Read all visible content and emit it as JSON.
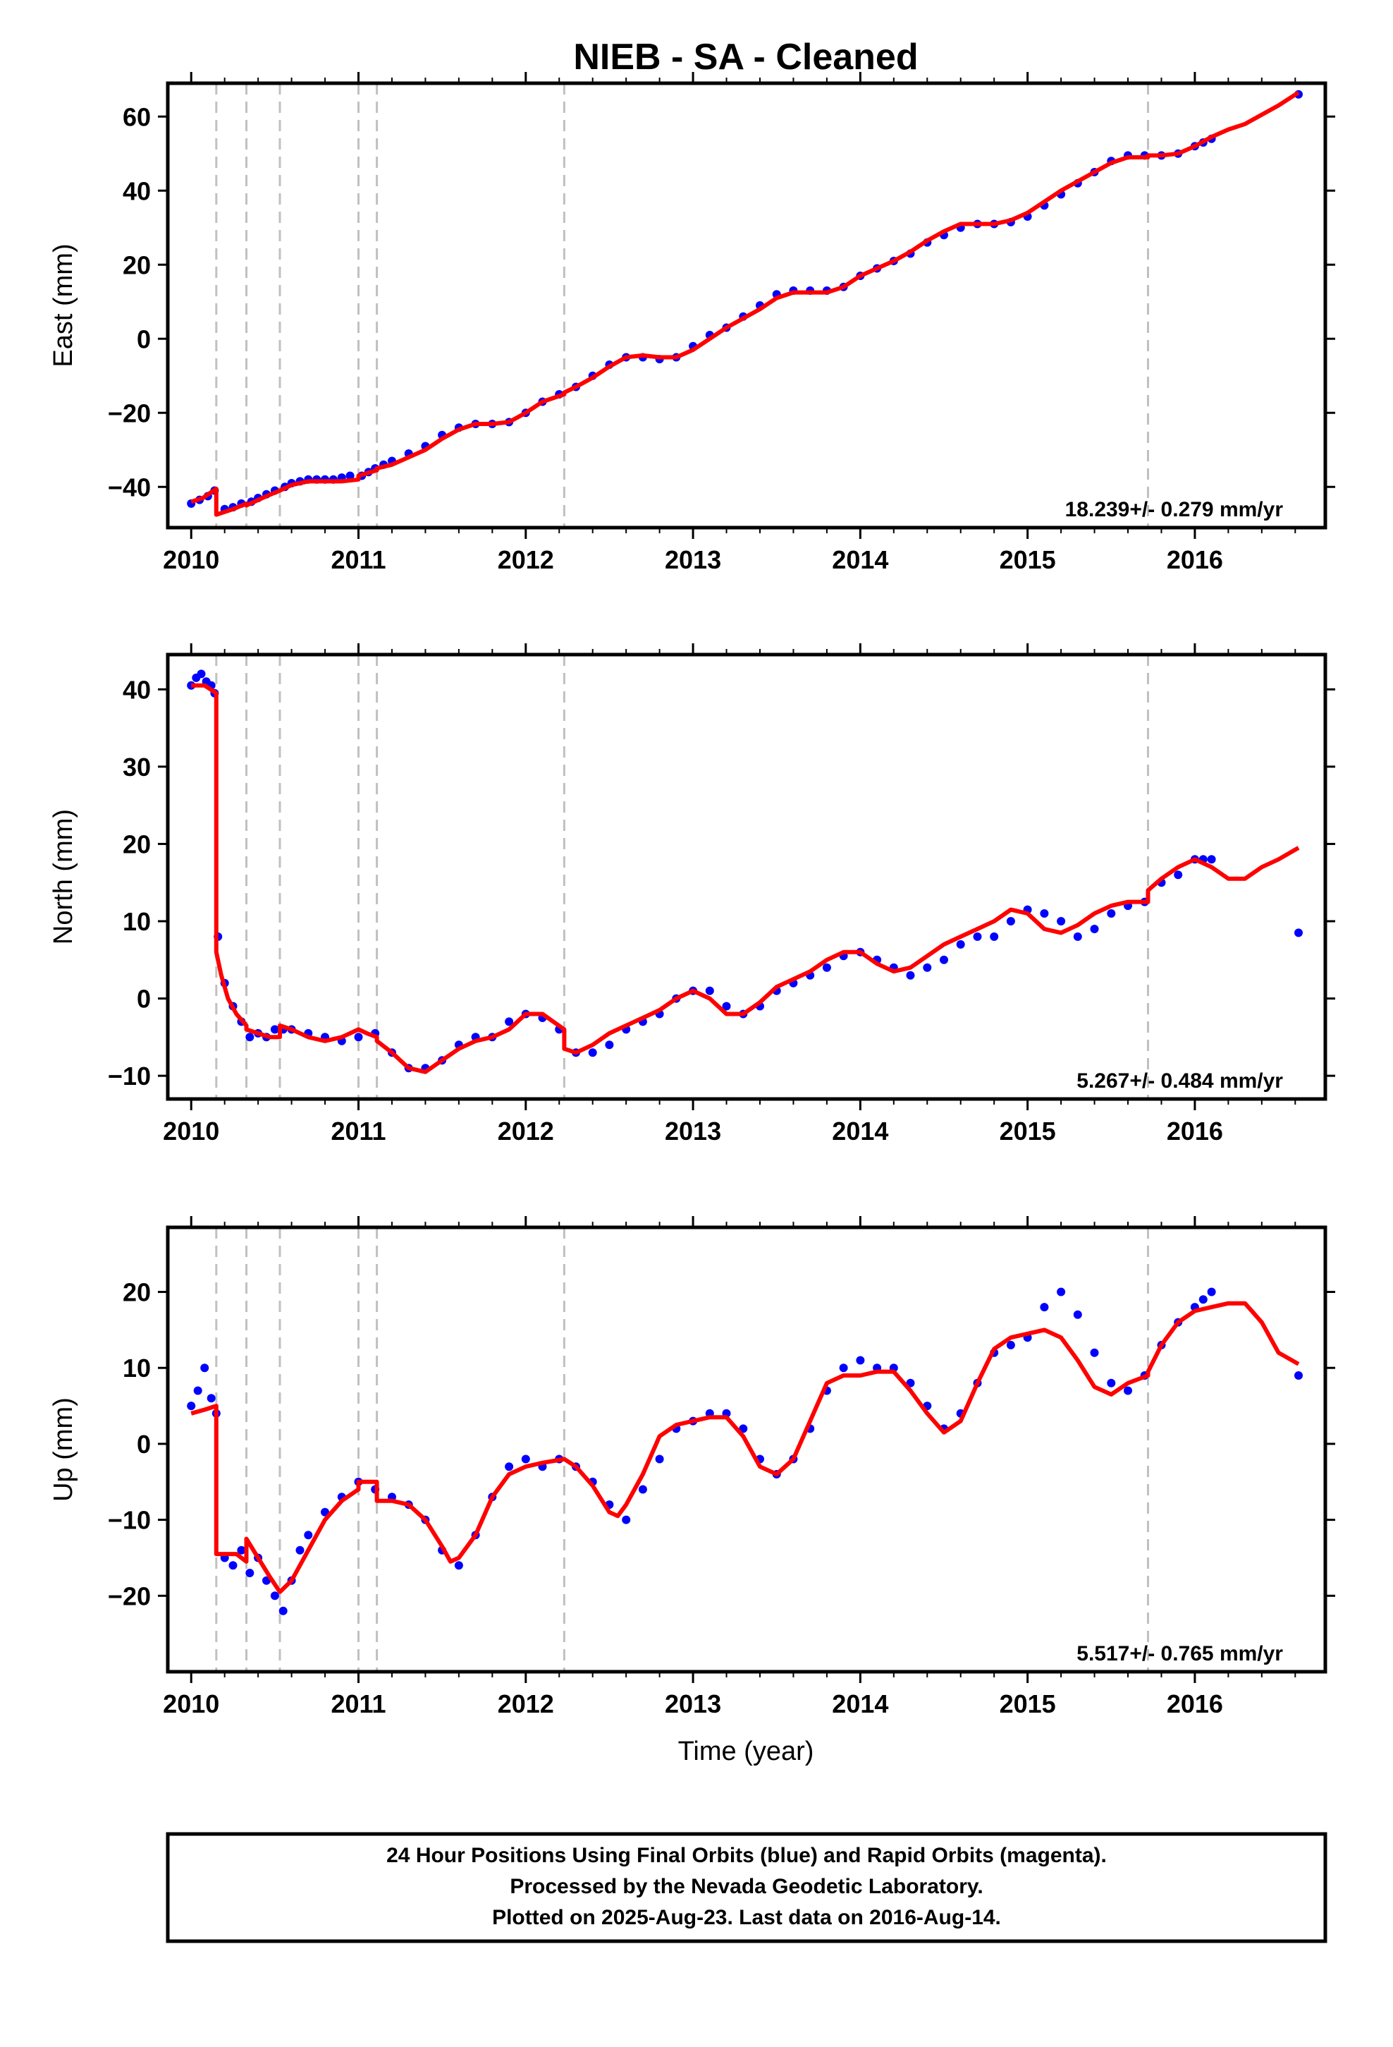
{
  "title": "NIEB  - SA - Cleaned",
  "colors": {
    "final": "#0000ff",
    "model": "#ff0000",
    "break": "#c0c0c0",
    "axis": "#000000"
  },
  "chart_data": [
    {
      "type": "scatter",
      "panel": "east",
      "ylabel": "East (mm)",
      "xlabel": "",
      "xlim": [
        2009.86,
        2016.78
      ],
      "ylim": [
        -51,
        69
      ],
      "yticks": [
        -40,
        -20,
        0,
        20,
        40,
        60
      ],
      "ytick_labels": [
        "−40",
        "−20",
        "0",
        "20",
        "40",
        "60"
      ],
      "xticks": [
        2010,
        2011,
        2012,
        2013,
        2014,
        2015,
        2016
      ],
      "xtick_labels": [
        "2010",
        "2011",
        "2012",
        "2013",
        "2014",
        "2015",
        "2016"
      ],
      "breaks": [
        2010.15,
        2010.33,
        2010.53,
        2011.0,
        2011.11,
        2012.23,
        2015.72
      ],
      "rate_text": "18.239+/- 0.279 mm/yr",
      "series_points": {
        "x": [
          2010.0,
          2010.05,
          2010.1,
          2010.14,
          2010.2,
          2010.25,
          2010.3,
          2010.36,
          2010.4,
          2010.45,
          2010.5,
          2010.56,
          2010.6,
          2010.65,
          2010.7,
          2010.75,
          2010.8,
          2010.85,
          2010.9,
          2010.95,
          2011.02,
          2011.06,
          2011.1,
          2011.15,
          2011.2,
          2011.3,
          2011.4,
          2011.5,
          2011.6,
          2011.7,
          2011.8,
          2011.9,
          2012.0,
          2012.1,
          2012.2,
          2012.3,
          2012.4,
          2012.5,
          2012.6,
          2012.7,
          2012.8,
          2012.9,
          2013.0,
          2013.1,
          2013.2,
          2013.3,
          2013.4,
          2013.5,
          2013.6,
          2013.7,
          2013.8,
          2013.9,
          2014.0,
          2014.1,
          2014.2,
          2014.3,
          2014.4,
          2014.5,
          2014.6,
          2014.7,
          2014.8,
          2014.9,
          2015.0,
          2015.1,
          2015.2,
          2015.3,
          2015.4,
          2015.5,
          2015.6,
          2015.7,
          2015.8,
          2015.9,
          2016.0,
          2016.05,
          2016.1,
          2016.62
        ],
        "y": [
          -44.5,
          -43.5,
          -42.5,
          -41,
          -46,
          -45.5,
          -44.5,
          -44,
          -43,
          -42,
          -41,
          -40,
          -39,
          -38.5,
          -38,
          -38,
          -38,
          -38,
          -37.5,
          -37,
          -37,
          -36,
          -35,
          -34,
          -33,
          -31,
          -29,
          -26,
          -24,
          -23,
          -23,
          -22.5,
          -20,
          -17,
          -15,
          -13,
          -10,
          -7,
          -5,
          -5,
          -5.5,
          -5,
          -2,
          1,
          3,
          6,
          9,
          12,
          13,
          13,
          13,
          14,
          17,
          19,
          21,
          23,
          26,
          28,
          30,
          31,
          31,
          31.5,
          33,
          36,
          39,
          42,
          45,
          48,
          49.5,
          49.5,
          49.5,
          50,
          52,
          53,
          54,
          66
        ]
      },
      "model_line": {
        "x": [
          2010.0,
          2010.07,
          2010.15,
          2010.15,
          2010.25,
          2010.33,
          2010.33,
          2010.45,
          2010.53,
          2010.53,
          2010.6,
          2010.7,
          2010.8,
          2010.9,
          2011.0,
          2011.0,
          2011.11,
          2011.11,
          2011.2,
          2011.3,
          2011.4,
          2011.5,
          2011.6,
          2011.7,
          2011.8,
          2011.9,
          2012.0,
          2012.1,
          2012.23,
          2012.23,
          2012.3,
          2012.4,
          2012.5,
          2012.6,
          2012.7,
          2012.8,
          2012.9,
          2013.0,
          2013.1,
          2013.2,
          2013.3,
          2013.4,
          2013.5,
          2013.6,
          2013.7,
          2013.8,
          2013.9,
          2014.0,
          2014.1,
          2014.2,
          2014.3,
          2014.4,
          2014.5,
          2014.6,
          2014.7,
          2014.8,
          2014.9,
          2015.0,
          2015.1,
          2015.2,
          2015.3,
          2015.4,
          2015.5,
          2015.6,
          2015.72,
          2015.72,
          2015.8,
          2015.9,
          2016.0,
          2016.1,
          2016.2,
          2016.3,
          2016.4,
          2016.5,
          2016.62
        ],
        "y": [
          -44,
          -43,
          -40.5,
          -47.5,
          -46,
          -44.5,
          -45,
          -42.5,
          -41,
          -41,
          -39.5,
          -38.5,
          -38.5,
          -38.5,
          -38,
          -37,
          -35.5,
          -35,
          -34,
          -32,
          -30,
          -27,
          -24.5,
          -23,
          -23,
          -22.5,
          -20,
          -17,
          -15,
          -14.5,
          -13,
          -10.5,
          -7.5,
          -5,
          -4.5,
          -5,
          -5,
          -3,
          0,
          3,
          5.5,
          8,
          11,
          12.5,
          12.5,
          12.5,
          14,
          17,
          19,
          21,
          23.5,
          26.5,
          29,
          31,
          31,
          31,
          32,
          34,
          37,
          40,
          42.5,
          45,
          47.5,
          49,
          49,
          49.5,
          49.5,
          50,
          52,
          54.5,
          56.5,
          58,
          60.5,
          63,
          66.5
        ]
      }
    },
    {
      "type": "scatter",
      "panel": "north",
      "ylabel": "North (mm)",
      "xlabel": "",
      "xlim": [
        2009.86,
        2016.78
      ],
      "ylim": [
        -13,
        44.5
      ],
      "yticks": [
        -10,
        0,
        10,
        20,
        30,
        40
      ],
      "ytick_labels": [
        "−10",
        "0",
        "10",
        "20",
        "30",
        "40"
      ],
      "xticks": [
        2010,
        2011,
        2012,
        2013,
        2014,
        2015,
        2016
      ],
      "xtick_labels": [
        "2010",
        "2011",
        "2012",
        "2013",
        "2014",
        "2015",
        "2016"
      ],
      "breaks": [
        2010.15,
        2010.33,
        2010.53,
        2011.0,
        2011.11,
        2012.23,
        2015.72
      ],
      "rate_text": "5.267+/- 0.484 mm/yr",
      "series_points": {
        "x": [
          2010.0,
          2010.03,
          2010.06,
          2010.09,
          2010.12,
          2010.14,
          2010.16,
          2010.2,
          2010.25,
          2010.3,
          2010.35,
          2010.4,
          2010.45,
          2010.5,
          2010.55,
          2010.6,
          2010.7,
          2010.8,
          2010.9,
          2011.0,
          2011.1,
          2011.2,
          2011.3,
          2011.4,
          2011.5,
          2011.6,
          2011.7,
          2011.8,
          2011.9,
          2012.0,
          2012.1,
          2012.2,
          2012.3,
          2012.4,
          2012.5,
          2012.6,
          2012.7,
          2012.8,
          2012.9,
          2013.0,
          2013.1,
          2013.2,
          2013.3,
          2013.4,
          2013.5,
          2013.6,
          2013.7,
          2013.8,
          2013.9,
          2014.0,
          2014.1,
          2014.2,
          2014.3,
          2014.4,
          2014.5,
          2014.6,
          2014.7,
          2014.8,
          2014.9,
          2015.0,
          2015.1,
          2015.2,
          2015.3,
          2015.4,
          2015.5,
          2015.6,
          2015.7,
          2015.8,
          2015.9,
          2016.0,
          2016.05,
          2016.1,
          2016.62
        ],
        "y": [
          40.5,
          41.5,
          42,
          41,
          40.5,
          39.5,
          8,
          2,
          -1,
          -3,
          -5,
          -4.5,
          -5,
          -4,
          -4,
          -4,
          -4.5,
          -5,
          -5.5,
          -5,
          -4.5,
          -7,
          -9,
          -9,
          -8,
          -6,
          -5,
          -5,
          -3,
          -2,
          -2.5,
          -4,
          -7,
          -7,
          -6,
          -4,
          -3,
          -2,
          0,
          1,
          1,
          -1,
          -2,
          -1,
          1,
          2,
          3,
          4,
          5.5,
          6,
          5,
          4,
          3,
          4,
          5,
          7,
          8,
          8,
          10,
          11.5,
          11,
          10,
          8,
          9,
          11,
          12,
          12.5,
          15,
          16,
          18,
          18,
          18,
          8.5
        ]
      },
      "model_line": {
        "x": [
          2010.0,
          2010.08,
          2010.15,
          2010.15,
          2010.18,
          2010.22,
          2010.27,
          2010.33,
          2010.33,
          2010.4,
          2010.47,
          2010.53,
          2010.53,
          2010.6,
          2010.7,
          2010.8,
          2010.9,
          2011.0,
          2011.0,
          2011.05,
          2011.11,
          2011.11,
          2011.2,
          2011.3,
          2011.4,
          2011.5,
          2011.6,
          2011.7,
          2011.8,
          2011.9,
          2012.0,
          2012.1,
          2012.23,
          2012.23,
          2012.3,
          2012.4,
          2012.5,
          2012.6,
          2012.7,
          2012.8,
          2012.9,
          2013.0,
          2013.1,
          2013.2,
          2013.3,
          2013.4,
          2013.5,
          2013.6,
          2013.7,
          2013.8,
          2013.9,
          2014.0,
          2014.1,
          2014.2,
          2014.3,
          2014.4,
          2014.5,
          2014.6,
          2014.7,
          2014.8,
          2014.9,
          2015.0,
          2015.1,
          2015.2,
          2015.3,
          2015.4,
          2015.5,
          2015.6,
          2015.72,
          2015.72,
          2015.8,
          2015.9,
          2016.0,
          2016.1,
          2016.2,
          2016.3,
          2016.4,
          2016.5,
          2016.62
        ],
        "y": [
          40.5,
          40.5,
          39.5,
          6,
          3,
          0,
          -2,
          -3.5,
          -4,
          -4.5,
          -5,
          -5,
          -3.5,
          -4,
          -5,
          -5.5,
          -5,
          -4,
          -4,
          -4.5,
          -5,
          -5.5,
          -7,
          -9,
          -9.5,
          -8,
          -6.5,
          -5.5,
          -5,
          -4,
          -2,
          -2,
          -4,
          -6.5,
          -7,
          -6,
          -4.5,
          -3.5,
          -2.5,
          -1.5,
          0,
          1,
          0,
          -2,
          -2,
          -0.5,
          1.5,
          2.5,
          3.5,
          5,
          6,
          6,
          4.5,
          3.5,
          4,
          5.5,
          7,
          8,
          9,
          10,
          11.5,
          11,
          9,
          8.5,
          9.5,
          11,
          12,
          12.5,
          12.5,
          14,
          15.5,
          17,
          18,
          17,
          15.5,
          15.5,
          17,
          18,
          19.5
        ]
      }
    },
    {
      "type": "scatter",
      "panel": "up",
      "ylabel": "Up (mm)",
      "xlabel": "Time (year)",
      "xlim": [
        2009.86,
        2016.78
      ],
      "ylim": [
        -30,
        28.5
      ],
      "yticks": [
        -20,
        -10,
        0,
        10,
        20
      ],
      "ytick_labels": [
        "−20",
        "−10",
        "0",
        "10",
        "20"
      ],
      "xticks": [
        2010,
        2011,
        2012,
        2013,
        2014,
        2015,
        2016
      ],
      "xtick_labels": [
        "2010",
        "2011",
        "2012",
        "2013",
        "2014",
        "2015",
        "2016"
      ],
      "breaks": [
        2010.15,
        2010.33,
        2010.53,
        2011.0,
        2011.11,
        2012.23,
        2015.72
      ],
      "rate_text": "5.517+/- 0.765 mm/yr",
      "series_points": {
        "x": [
          2010.0,
          2010.04,
          2010.08,
          2010.12,
          2010.15,
          2010.2,
          2010.25,
          2010.3,
          2010.35,
          2010.4,
          2010.45,
          2010.5,
          2010.55,
          2010.6,
          2010.65,
          2010.7,
          2010.8,
          2010.9,
          2011.0,
          2011.1,
          2011.2,
          2011.3,
          2011.4,
          2011.5,
          2011.6,
          2011.7,
          2011.8,
          2011.9,
          2012.0,
          2012.1,
          2012.2,
          2012.3,
          2012.4,
          2012.5,
          2012.6,
          2012.7,
          2012.8,
          2012.9,
          2013.0,
          2013.1,
          2013.2,
          2013.3,
          2013.4,
          2013.5,
          2013.6,
          2013.7,
          2013.8,
          2013.9,
          2014.0,
          2014.1,
          2014.2,
          2014.3,
          2014.4,
          2014.5,
          2014.6,
          2014.7,
          2014.8,
          2014.9,
          2015.0,
          2015.1,
          2015.2,
          2015.3,
          2015.4,
          2015.5,
          2015.6,
          2015.7,
          2015.8,
          2015.9,
          2016.0,
          2016.05,
          2016.1,
          2016.62
        ],
        "y": [
          5,
          7,
          10,
          6,
          4,
          -15,
          -16,
          -14,
          -17,
          -15,
          -18,
          -20,
          -22,
          -18,
          -14,
          -12,
          -9,
          -7,
          -5,
          -6,
          -7,
          -8,
          -10,
          -14,
          -16,
          -12,
          -7,
          -3,
          -2,
          -3,
          -2,
          -3,
          -5,
          -8,
          -10,
          -6,
          -2,
          2,
          3,
          4,
          4,
          2,
          -2,
          -4,
          -2,
          2,
          7,
          10,
          11,
          10,
          10,
          8,
          5,
          2,
          4,
          8,
          12,
          13,
          14,
          18,
          20,
          17,
          12,
          8,
          7,
          9,
          13,
          16,
          18,
          19,
          20,
          9
        ]
      },
      "model_line": {
        "x": [
          2010.0,
          2010.08,
          2010.15,
          2010.15,
          2010.2,
          2010.27,
          2010.33,
          2010.33,
          2010.4,
          2010.47,
          2010.53,
          2010.53,
          2010.6,
          2010.7,
          2010.8,
          2010.9,
          2011.0,
          2011.0,
          2011.05,
          2011.11,
          2011.11,
          2011.2,
          2011.3,
          2011.4,
          2011.5,
          2011.55,
          2011.6,
          2011.7,
          2011.8,
          2011.9,
          2012.0,
          2012.1,
          2012.23,
          2012.23,
          2012.3,
          2012.4,
          2012.5,
          2012.55,
          2012.6,
          2012.7,
          2012.8,
          2012.9,
          2013.0,
          2013.1,
          2013.2,
          2013.3,
          2013.4,
          2013.5,
          2013.6,
          2013.7,
          2013.8,
          2013.9,
          2014.0,
          2014.1,
          2014.2,
          2014.3,
          2014.4,
          2014.5,
          2014.6,
          2014.7,
          2014.8,
          2014.9,
          2015.0,
          2015.1,
          2015.2,
          2015.3,
          2015.4,
          2015.5,
          2015.6,
          2015.72,
          2015.72,
          2015.8,
          2015.9,
          2016.0,
          2016.1,
          2016.2,
          2016.3,
          2016.4,
          2016.5,
          2016.62
        ],
        "y": [
          4,
          4.5,
          5,
          -14.5,
          -14.5,
          -14.5,
          -15.5,
          -12.5,
          -15,
          -17.5,
          -19.5,
          -19.5,
          -18,
          -14,
          -10,
          -7.5,
          -6,
          -5,
          -5,
          -5,
          -7.5,
          -7.5,
          -8,
          -10,
          -13.5,
          -15.5,
          -15,
          -12,
          -7,
          -4,
          -3,
          -2.5,
          -2,
          -2,
          -3,
          -5.5,
          -9,
          -9.5,
          -8,
          -4,
          1,
          2.5,
          3,
          3.5,
          3.5,
          1,
          -3,
          -4,
          -2,
          3,
          8,
          9,
          9,
          9.5,
          9.5,
          7,
          4,
          1.5,
          3,
          8,
          12.5,
          14,
          14.5,
          15,
          14,
          11,
          7.5,
          6.5,
          8,
          9,
          9.5,
          13,
          16,
          17.5,
          18,
          18.5,
          18.5,
          16,
          12,
          10.5
        ]
      }
    }
  ],
  "footer": {
    "lines": [
      "24 Hour Positions Using Final Orbits (blue) and Rapid Orbits (magenta).",
      "Processed by the Nevada Geodetic Laboratory.",
      "Plotted on 2025-Aug-23. Last data on 2016-Aug-14."
    ]
  }
}
